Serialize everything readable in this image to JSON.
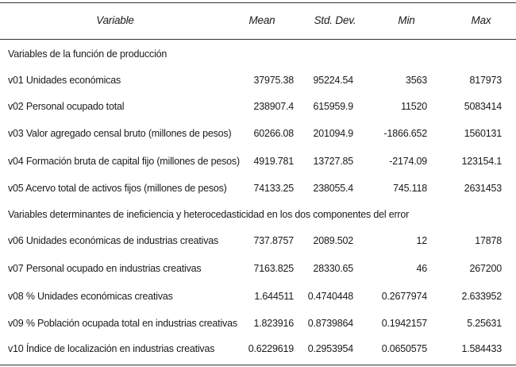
{
  "header": {
    "variable": "Variable",
    "mean": "Mean",
    "sd": "Std. Dev.",
    "min": "Min",
    "max": "Max"
  },
  "section1": {
    "title": "Variables de la función de producción",
    "rows": [
      {
        "variable": "v01 Unidades económicas",
        "mean": "37975.38",
        "sd": "95224.54",
        "min": "3563",
        "max": "817973"
      },
      {
        "variable": "v02 Personal ocupado total",
        "mean": "238907.4",
        "sd": "615959.9",
        "min": "11520",
        "max": "5083414"
      },
      {
        "variable": "v03 Valor agregado censal bruto (millones de pesos)",
        "mean": "60266.08",
        "sd": "201094.9",
        "min": "-1866.652",
        "max": "1560131"
      },
      {
        "variable": "v04 Formación bruta de capital fijo (millones de pesos)",
        "mean": "4919.781",
        "sd": "13727.85",
        "min": "-2174.09",
        "max": "123154.1"
      },
      {
        "variable": "v05 Acervo total de activos fijos (millones de pesos)",
        "mean": "74133.25",
        "sd": "238055.4",
        "min": "745.118",
        "max": "2631453"
      }
    ]
  },
  "section2": {
    "title": "Variables determinantes de ineficiencia y heterocedasticidad en los dos componentes del error",
    "rows": [
      {
        "variable": "v06 Unidades económicas de industrias creativas",
        "mean": "737.8757",
        "sd": "2089.502",
        "min": "12",
        "max": "17878"
      },
      {
        "variable": "v07 Personal ocupado en industrias creativas",
        "mean": "7163.825",
        "sd": "28330.65",
        "min": "46",
        "max": "267200"
      },
      {
        "variable": "v08 % Unidades económicas creativas",
        "mean": "1.644511",
        "sd": "0.4740448",
        "min": "0.2677974",
        "max": "2.633952"
      },
      {
        "variable": "v09 % Población ocupada total en industrias creativas",
        "mean": "1.823916",
        "sd": "0.8739864",
        "min": "0.1942157",
        "max": "5.25631"
      },
      {
        "variable": "v10 Índice de localización en industrias creativas",
        "mean": "0.6229619",
        "sd": "0.2953954",
        "min": "0.0650575",
        "max": "1.584433"
      }
    ]
  }
}
